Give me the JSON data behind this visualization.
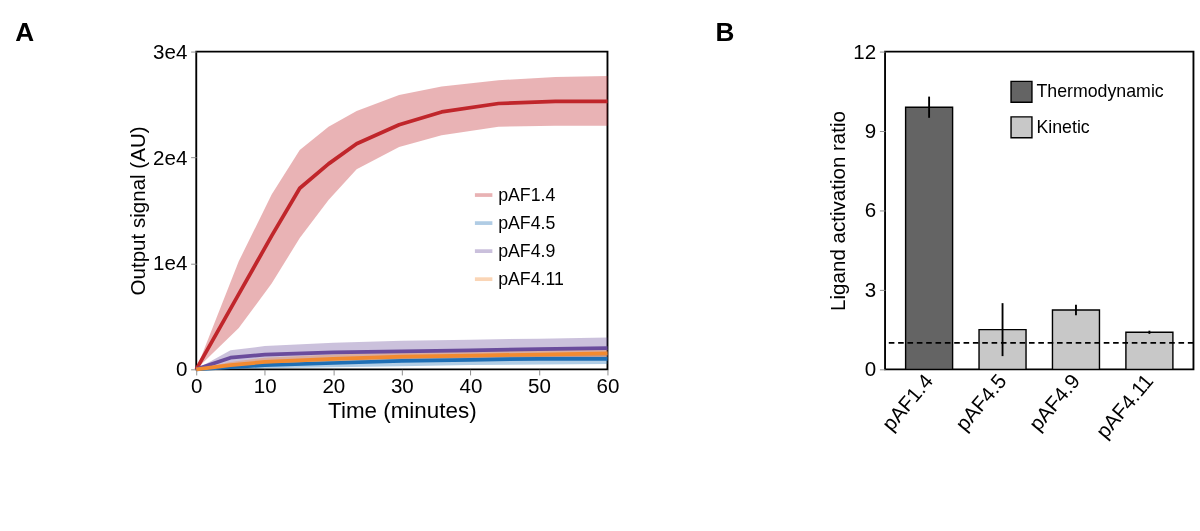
{
  "chart_data": [
    {
      "type": "line",
      "title": "A",
      "xlabel": "Time (minutes)",
      "ylabel": "Output signal (AU)",
      "xlim": [
        0,
        60
      ],
      "xticks": [
        0,
        10,
        20,
        30,
        40,
        50,
        60
      ],
      "ylim": [
        0,
        30000
      ],
      "yticks": [
        0,
        {
          "value": 10000,
          "label": "1e4"
        },
        {
          "value": 20000,
          "label": "2e4"
        },
        {
          "value": 30000,
          "label": "3e4"
        }
      ],
      "grid": false,
      "legend": "right",
      "marker": "none",
      "line_style": "solid",
      "series": [
        {
          "name": "pAF1.4",
          "color": "#c0262b",
          "x": [
            0,
            6.2,
            11,
            15.1,
            19.3,
            23.4,
            29.6,
            35.8,
            44.1,
            52.4,
            60
          ],
          "values": [
            0,
            7100,
            12600,
            17100,
            19400,
            21300,
            23100,
            24300,
            25100,
            25300,
            25300
          ],
          "lower": [
            0,
            3900,
            8100,
            12400,
            16000,
            18900,
            21000,
            22100,
            22900,
            23000,
            23000
          ],
          "upper": [
            0,
            10200,
            16500,
            20700,
            22900,
            24400,
            25900,
            26700,
            27300,
            27600,
            27700
          ]
        },
        {
          "name": "pAF4.5",
          "color": "#1f6fb5",
          "x": [
            0,
            5,
            10,
            20,
            30,
            40,
            50,
            60
          ],
          "values": [
            0,
            200,
            400,
            600,
            800,
            900,
            1000,
            1000
          ],
          "lower": [
            0,
            0,
            100,
            200,
            300,
            400,
            450,
            500
          ],
          "upper": [
            0,
            500,
            800,
            1000,
            1200,
            1300,
            1400,
            1500
          ]
        },
        {
          "name": "pAF4.9",
          "color": "#6a4c9c",
          "x": [
            0,
            5,
            10,
            20,
            30,
            40,
            50,
            60
          ],
          "values": [
            0,
            1100,
            1400,
            1600,
            1700,
            1800,
            1900,
            2000
          ],
          "lower": [
            0,
            400,
            700,
            900,
            1000,
            1100,
            1150,
            1200
          ],
          "upper": [
            0,
            1800,
            2200,
            2500,
            2700,
            2800,
            2900,
            3000
          ]
        },
        {
          "name": "pAF4.11",
          "color": "#f28a30",
          "x": [
            0,
            5,
            10,
            20,
            30,
            40,
            50,
            60
          ],
          "values": [
            0,
            400,
            700,
            1000,
            1200,
            1300,
            1400,
            1500
          ],
          "lower": [
            0,
            100,
            300,
            600,
            700,
            800,
            900,
            1000
          ],
          "upper": [
            0,
            700,
            1100,
            1400,
            1600,
            1700,
            1800,
            1900
          ]
        }
      ]
    },
    {
      "type": "bar",
      "title": "B",
      "ylabel": "Ligand activation ratio",
      "categories": [
        "pAF1.4",
        "pAF4.5",
        "pAF4.9",
        "pAF4.11"
      ],
      "ylim": [
        0,
        12
      ],
      "yticks": [
        0,
        3,
        6,
        9,
        12
      ],
      "grid": false,
      "legend": "top right",
      "stacked": true,
      "series": [
        {
          "name": "Thermodynamic",
          "color": "#646464",
          "values": [
            9.9,
            null,
            null,
            null
          ],
          "errors": [
            0.4,
            null,
            null,
            null
          ]
        },
        {
          "name": "Kinetic",
          "color": "#c8c8c8",
          "values": [
            null,
            1.5,
            2.24,
            1.4
          ],
          "errors": [
            null,
            1.0,
            0.2,
            0.06
          ]
        }
      ],
      "ref_lines": [
        {
          "axis": "y",
          "value": 1,
          "line_style": "dashed",
          "color": "#000000"
        }
      ]
    }
  ]
}
